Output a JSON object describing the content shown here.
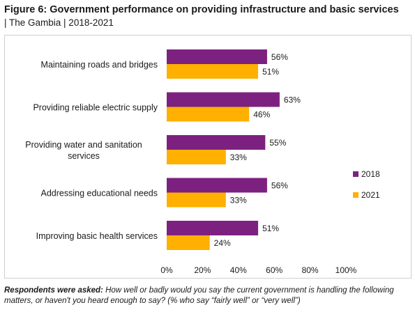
{
  "title": {
    "main": "Figure 6: Government performance on providing infrastructure and basic services",
    "sub": "| The Gambia | 2018-2021"
  },
  "footnote": {
    "lead": "Respondents were asked:",
    "text": " How well or badly would you say the current government is handling the following matters, or haven't you heard enough to say? (% who say “fairly well” or “very well”)"
  },
  "colors": {
    "2018": "#7d2180",
    "2021": "#ffb000"
  },
  "chart_data": {
    "type": "bar",
    "orientation": "horizontal",
    "categories": [
      "Maintaining roads and bridges",
      "Providing reliable electric supply",
      "Providing water and sanitation services",
      "Addressing educational needs",
      "Improving basic health services"
    ],
    "series": [
      {
        "name": "2018",
        "values": [
          56,
          63,
          55,
          56,
          51
        ],
        "labels": [
          "56%",
          "63%",
          "55%",
          "56%",
          "51%"
        ]
      },
      {
        "name": "2021",
        "values": [
          51,
          46,
          33,
          33,
          24
        ],
        "labels": [
          "51%",
          "46%",
          "33%",
          "33%",
          "24%"
        ]
      }
    ],
    "xlim": [
      0,
      100
    ],
    "xticks": [
      "0%",
      "20%",
      "40%",
      "60%",
      "80%",
      "100%"
    ],
    "grid": false,
    "legend_position": "right"
  }
}
